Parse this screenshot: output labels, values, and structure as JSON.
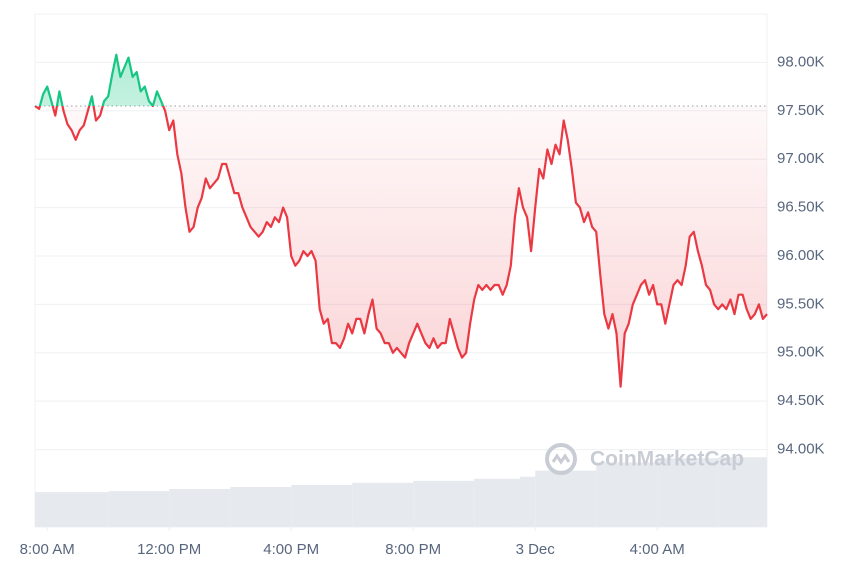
{
  "chart_data": {
    "type": "line",
    "watermark": "CoinMarketCap",
    "baseline": 97550,
    "colors": {
      "up": "#16c784",
      "down": "#ea3943",
      "volume": "#e6e9ee"
    },
    "grid": true,
    "xlim": [
      -24,
      1416
    ],
    "ylim": [
      93200,
      98500
    ],
    "xticks": [
      {
        "value": 0,
        "label": "8:00 AM"
      },
      {
        "value": 240,
        "label": "12:00 PM"
      },
      {
        "value": 480,
        "label": "4:00 PM"
      },
      {
        "value": 720,
        "label": "8:00 PM"
      },
      {
        "value": 960,
        "label": "3 Dec"
      },
      {
        "value": 1200,
        "label": "4:00 AM"
      }
    ],
    "yticks": [
      {
        "value": 94000,
        "label": "94.00K"
      },
      {
        "value": 94500,
        "label": "94.50K"
      },
      {
        "value": 95000,
        "label": "95.00K"
      },
      {
        "value": 95500,
        "label": "95.50K"
      },
      {
        "value": 96000,
        "label": "96.00K"
      },
      {
        "value": 96500,
        "label": "96.50K"
      },
      {
        "value": 97000,
        "label": "97.00K"
      },
      {
        "value": 97500,
        "label": "97.50K"
      },
      {
        "value": 98000,
        "label": "98.00K"
      }
    ],
    "x": [
      -24,
      -16,
      -8,
      0,
      8,
      16,
      24,
      32,
      40,
      48,
      56,
      64,
      72,
      80,
      88,
      96,
      104,
      112,
      120,
      128,
      136,
      144,
      152,
      160,
      168,
      176,
      184,
      192,
      200,
      208,
      216,
      224,
      232,
      240,
      248,
      256,
      264,
      272,
      280,
      288,
      296,
      304,
      312,
      320,
      328,
      336,
      344,
      352,
      360,
      368,
      376,
      384,
      392,
      400,
      408,
      416,
      424,
      432,
      440,
      448,
      456,
      464,
      472,
      480,
      488,
      496,
      504,
      512,
      520,
      528,
      536,
      544,
      552,
      560,
      568,
      576,
      584,
      592,
      600,
      608,
      616,
      624,
      632,
      640,
      648,
      656,
      664,
      672,
      680,
      688,
      696,
      704,
      712,
      720,
      728,
      736,
      744,
      752,
      760,
      768,
      776,
      784,
      792,
      800,
      808,
      816,
      824,
      832,
      840,
      848,
      856,
      864,
      872,
      880,
      888,
      896,
      904,
      912,
      920,
      928,
      936,
      944,
      952,
      960,
      968,
      976,
      984,
      992,
      1000,
      1008,
      1016,
      1024,
      1032,
      1040,
      1048,
      1056,
      1064,
      1072,
      1080,
      1088,
      1096,
      1104,
      1112,
      1120,
      1128,
      1136,
      1144,
      1152,
      1160,
      1168,
      1176,
      1184,
      1192,
      1200,
      1208,
      1216,
      1224,
      1232,
      1240,
      1248,
      1256,
      1264,
      1272,
      1280,
      1288,
      1296,
      1304,
      1312,
      1320,
      1328,
      1336,
      1344,
      1352,
      1360,
      1368,
      1376,
      1384,
      1392,
      1400,
      1408,
      1416
    ],
    "values": [
      97550,
      97520,
      97670,
      97750,
      97600,
      97450,
      97700,
      97500,
      97360,
      97300,
      97200,
      97300,
      97350,
      97500,
      97650,
      97400,
      97450,
      97600,
      97650,
      97880,
      98080,
      97850,
      97950,
      98050,
      97850,
      97900,
      97700,
      97750,
      97600,
      97550,
      97700,
      97600,
      97500,
      97300,
      97400,
      97050,
      96850,
      96500,
      96250,
      96300,
      96500,
      96600,
      96800,
      96700,
      96750,
      96800,
      96950,
      96950,
      96800,
      96650,
      96650,
      96500,
      96400,
      96300,
      96250,
      96200,
      96250,
      96350,
      96300,
      96400,
      96350,
      96500,
      96400,
      96000,
      95900,
      95950,
      96050,
      96000,
      96050,
      95950,
      95450,
      95300,
      95350,
      95100,
      95100,
      95050,
      95150,
      95300,
      95200,
      95350,
      95350,
      95200,
      95400,
      95550,
      95250,
      95200,
      95100,
      95100,
      95000,
      95050,
      95000,
      94950,
      95100,
      95200,
      95300,
      95200,
      95100,
      95050,
      95150,
      95050,
      95100,
      95100,
      95350,
      95200,
      95050,
      94950,
      95000,
      95300,
      95550,
      95700,
      95650,
      95700,
      95650,
      95700,
      95700,
      95600,
      95700,
      95900,
      96400,
      96700,
      96500,
      96400,
      96050,
      96500,
      96900,
      96800,
      97100,
      96950,
      97150,
      97050,
      97400,
      97200,
      96900,
      96550,
      96500,
      96350,
      96450,
      96300,
      96250,
      95800,
      95400,
      95250,
      95400,
      95200,
      94650,
      95200,
      95300,
      95500,
      95600,
      95700,
      95750,
      95600,
      95700,
      95500,
      95500,
      95300,
      95500,
      95700,
      95750,
      95700,
      95900,
      96200,
      96250,
      96050,
      95900,
      95700,
      95650,
      95500,
      95450,
      95500,
      95450,
      95550,
      95400,
      95600,
      95600,
      95450,
      95350,
      95400,
      95500,
      95350,
      95400
    ],
    "volume": {
      "ylim": [
        0,
        100
      ],
      "x": [
        -24,
        120,
        240,
        360,
        480,
        600,
        720,
        840,
        930,
        960,
        1080,
        1200,
        1320
      ],
      "values": [
        6.8,
        7.0,
        7.4,
        7.8,
        8.2,
        8.6,
        9.0,
        9.4,
        9.8,
        11.0,
        12.6,
        13.4,
        13.6
      ]
    }
  }
}
